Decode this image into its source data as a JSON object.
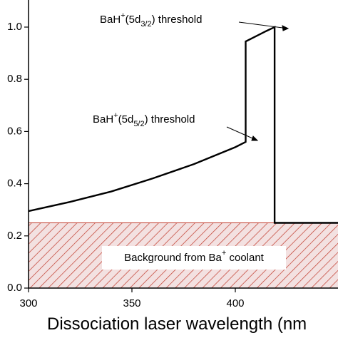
{
  "chart_data": {
    "type": "line",
    "x_label": "Dissociation laser wavelength (nm",
    "x": [
      300,
      320,
      340,
      360,
      380,
      400,
      405,
      405,
      410,
      415,
      419,
      419,
      450
    ],
    "series": [
      {
        "color": "#000000",
        "values": [
          0.295,
          0.33,
          0.37,
          0.42,
          0.475,
          0.54,
          0.56,
          0.945,
          0.965,
          0.985,
          1.0,
          0.25,
          0.25
        ]
      }
    ],
    "background": {
      "name_parts": [
        "Background from Ba",
        "+",
        " coolant"
      ],
      "value": 0.25,
      "color": "#c0392b"
    },
    "annotations": [
      {
        "parts": [
          "BaH",
          "+",
          "(5d",
          "3/2",
          ") threshold"
        ]
      },
      {
        "parts": [
          "BaH",
          "+",
          "(5d",
          "5/2",
          ") threshold"
        ]
      }
    ],
    "xlim": [
      300,
      450
    ],
    "xticks": [
      300,
      350,
      400
    ],
    "ylim": [
      0,
      1.1
    ],
    "yticks": [
      {
        "value": 0,
        "label": "0.0"
      },
      {
        "value": 0.2,
        "label": "0.2"
      },
      {
        "value": 0.4,
        "label": "0.4"
      },
      {
        "value": 0.6,
        "label": "0.6"
      },
      {
        "value": 0.8,
        "label": "0.8"
      },
      {
        "value": 1,
        "label": "1.0"
      }
    ]
  }
}
